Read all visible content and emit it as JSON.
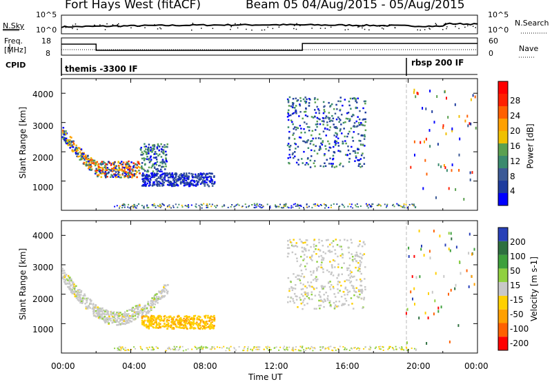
{
  "header": {
    "title": "Fort Hays West (fitACF)",
    "subtitle": "Beam 05 04/Aug/2015 - 05/Aug/2015"
  },
  "sky_panel": {
    "left_label": "N.Sky",
    "right_label": "N.Search",
    "left_ticks": [
      "10^5",
      "10^0"
    ],
    "right_ticks": [
      "10^5",
      "10^0"
    ]
  },
  "freq_panel": {
    "left_label_line1": "Freq.",
    "left_label_line2": "[MHz]",
    "right_label": "Nave",
    "left_ticks": [
      "18",
      "8"
    ],
    "right_ticks": [
      "60",
      "0"
    ]
  },
  "cpid_panel": {
    "label": "CPID",
    "programs": [
      {
        "name": "themis -3300 IF",
        "start_hour": 0,
        "end_hour": 19.9
      },
      {
        "name": "rbsp 200 IF",
        "start_hour": 19.9,
        "end_hour": 24
      }
    ]
  },
  "chart_data": [
    {
      "type": "heatmap",
      "name": "power",
      "ylabel": "Slant Range [km]",
      "yticks": [
        "4000",
        "3000",
        "2000",
        "1000"
      ],
      "ylim": [
        0,
        4500
      ],
      "colorbar_label": "Power [dB]",
      "colorbar_ticks": [
        "28",
        "24",
        "20",
        "16",
        "12",
        "8",
        "4"
      ],
      "colorbar_colors": [
        "#0000ff",
        "#1e3c9e",
        "#3c5a96",
        "#3a8a6e",
        "#5aa050",
        "#f0c000",
        "#ffa000",
        "#ff6000",
        "#ff2000",
        "#ff0000"
      ],
      "features": [
        {
          "start_hour": 0.0,
          "end_hour": 2.0,
          "range_km_low": 1850,
          "range_km_high": 2900,
          "max_db": 24
        },
        {
          "start_hour": 2.0,
          "end_hour": 4.5,
          "range_km_low": 1150,
          "range_km_high": 1700,
          "max_db": 28
        },
        {
          "start_hour": 4.5,
          "end_hour": 6.1,
          "range_km_low": 1350,
          "range_km_high": 2300,
          "max_db": 16
        },
        {
          "start_hour": 4.6,
          "end_hour": 8.8,
          "range_km_low": 850,
          "range_km_high": 1300,
          "max_db": 8
        },
        {
          "start_hour": 13.0,
          "end_hour": 17.5,
          "range_km_low": 1500,
          "range_km_high": 3900,
          "max_db": 16
        }
      ]
    },
    {
      "type": "heatmap",
      "name": "velocity",
      "ylabel": "Slant Range [km]",
      "yticks": [
        "4000",
        "3000",
        "2000",
        "1000"
      ],
      "ylim": [
        0,
        4500
      ],
      "colorbar_label": "Velocity [m s-1]",
      "colorbar_ticks": [
        "200",
        "100",
        "50",
        "15",
        "-15",
        "-50",
        "-100",
        "-200"
      ],
      "colorbar_colors": [
        "#2840b8",
        "#2e7040",
        "#3ea03c",
        "#90d040",
        "#c8c8c8",
        "#ffd000",
        "#ffa000",
        "#ff6000",
        "#ff0000"
      ],
      "features": [
        {
          "start_hour": 0.0,
          "end_hour": 6.1,
          "range_km_low": 1100,
          "range_km_high": 2900,
          "velocity_class": "-15 to 15"
        },
        {
          "start_hour": 4.6,
          "end_hour": 8.8,
          "range_km_low": 850,
          "range_km_high": 1300,
          "velocity_class": "-50 to -15"
        },
        {
          "start_hour": 13.0,
          "end_hour": 17.5,
          "range_km_low": 1500,
          "range_km_high": 3900,
          "velocity_class": "-15 to 15"
        }
      ]
    }
  ],
  "x_axis": {
    "label": "Time UT",
    "ticks": [
      "00:00",
      "04:00",
      "08:00",
      "12:00",
      "16:00",
      "20:00",
      "00:00"
    ]
  }
}
